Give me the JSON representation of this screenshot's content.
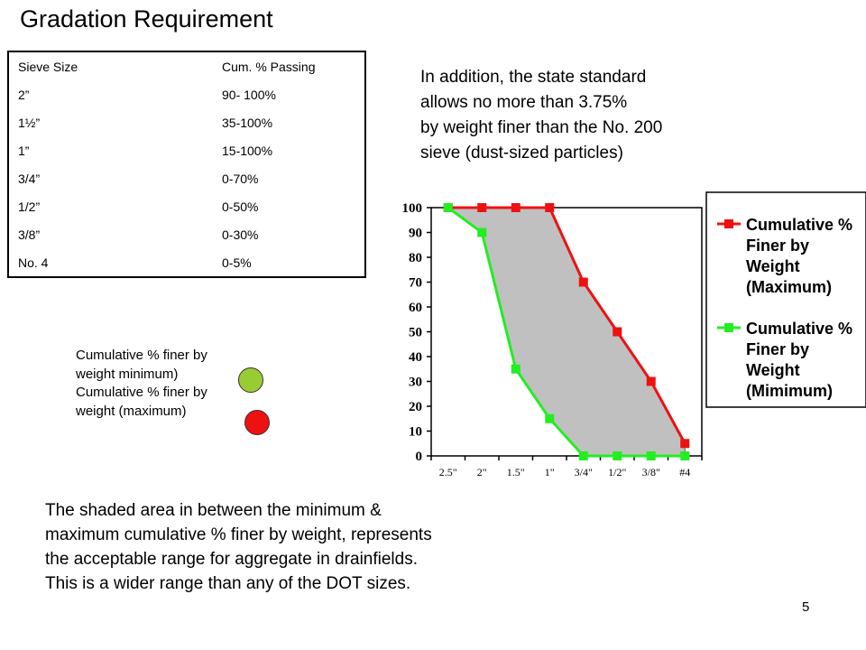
{
  "title": "Gradation Requirement",
  "table": {
    "headers": [
      "Sieve Size",
      "Cum. % Passing"
    ],
    "rows": [
      [
        "2”",
        "90- 100%"
      ],
      [
        "1½”",
        "35-100%"
      ],
      [
        "1”",
        "15-100%"
      ],
      [
        "3/4”",
        "0-70%"
      ],
      [
        "1/2”",
        "0-50%"
      ],
      [
        "3/8”",
        "0-30%"
      ],
      [
        "No. 4",
        "0-5%"
      ]
    ]
  },
  "note_lines": [
    "In addition, the state standard",
    "allows no more than 3.75%",
    "by weight finer than the No. 200",
    "sieve (dust-sized particles)"
  ],
  "left_legend": {
    "lines": [
      "Cumulative % finer by",
      "weight minimum)",
      "Cumulative % finer by",
      "weight (maximum)"
    ],
    "min_color": "#99cc33",
    "max_color": "#ee1111"
  },
  "bottom_lines": [
    "The shaded area in between the minimum &",
    "maximum cumulative % finer by weight, represents",
    "the acceptable range for aggregate in drainfields.",
    "This is a wider range than any of the DOT sizes."
  ],
  "page_number": "5",
  "chart_data": {
    "type": "line",
    "categories": [
      "2.5\"",
      "2\"",
      "1.5\"",
      "1\"",
      "3/4\"",
      "1/2\"",
      "3/8\"",
      "#4"
    ],
    "ylim": [
      0,
      100
    ],
    "yticks": [
      0,
      10,
      20,
      30,
      40,
      50,
      60,
      70,
      80,
      90,
      100
    ],
    "grid": true,
    "legend_position": "right",
    "shaded_between_series": true,
    "shade_color": "#c0c0c0",
    "series": [
      {
        "name": "Cumulative % Finer by Weight (Maximum)",
        "legend_lines": [
          "Cumulative %",
          "Finer by",
          "Weight",
          "(Maximum)"
        ],
        "color": "#ee1111",
        "values": [
          100,
          100,
          100,
          100,
          70,
          50,
          30,
          5
        ]
      },
      {
        "name": "Cumulative % Finer by Weight (Mimimum)",
        "legend_lines": [
          "Cumulative %",
          "Finer by",
          "Weight",
          "(Mimimum)"
        ],
        "color": "#22ee22",
        "values": [
          100,
          90,
          35,
          15,
          0,
          0,
          0,
          0
        ]
      }
    ]
  }
}
